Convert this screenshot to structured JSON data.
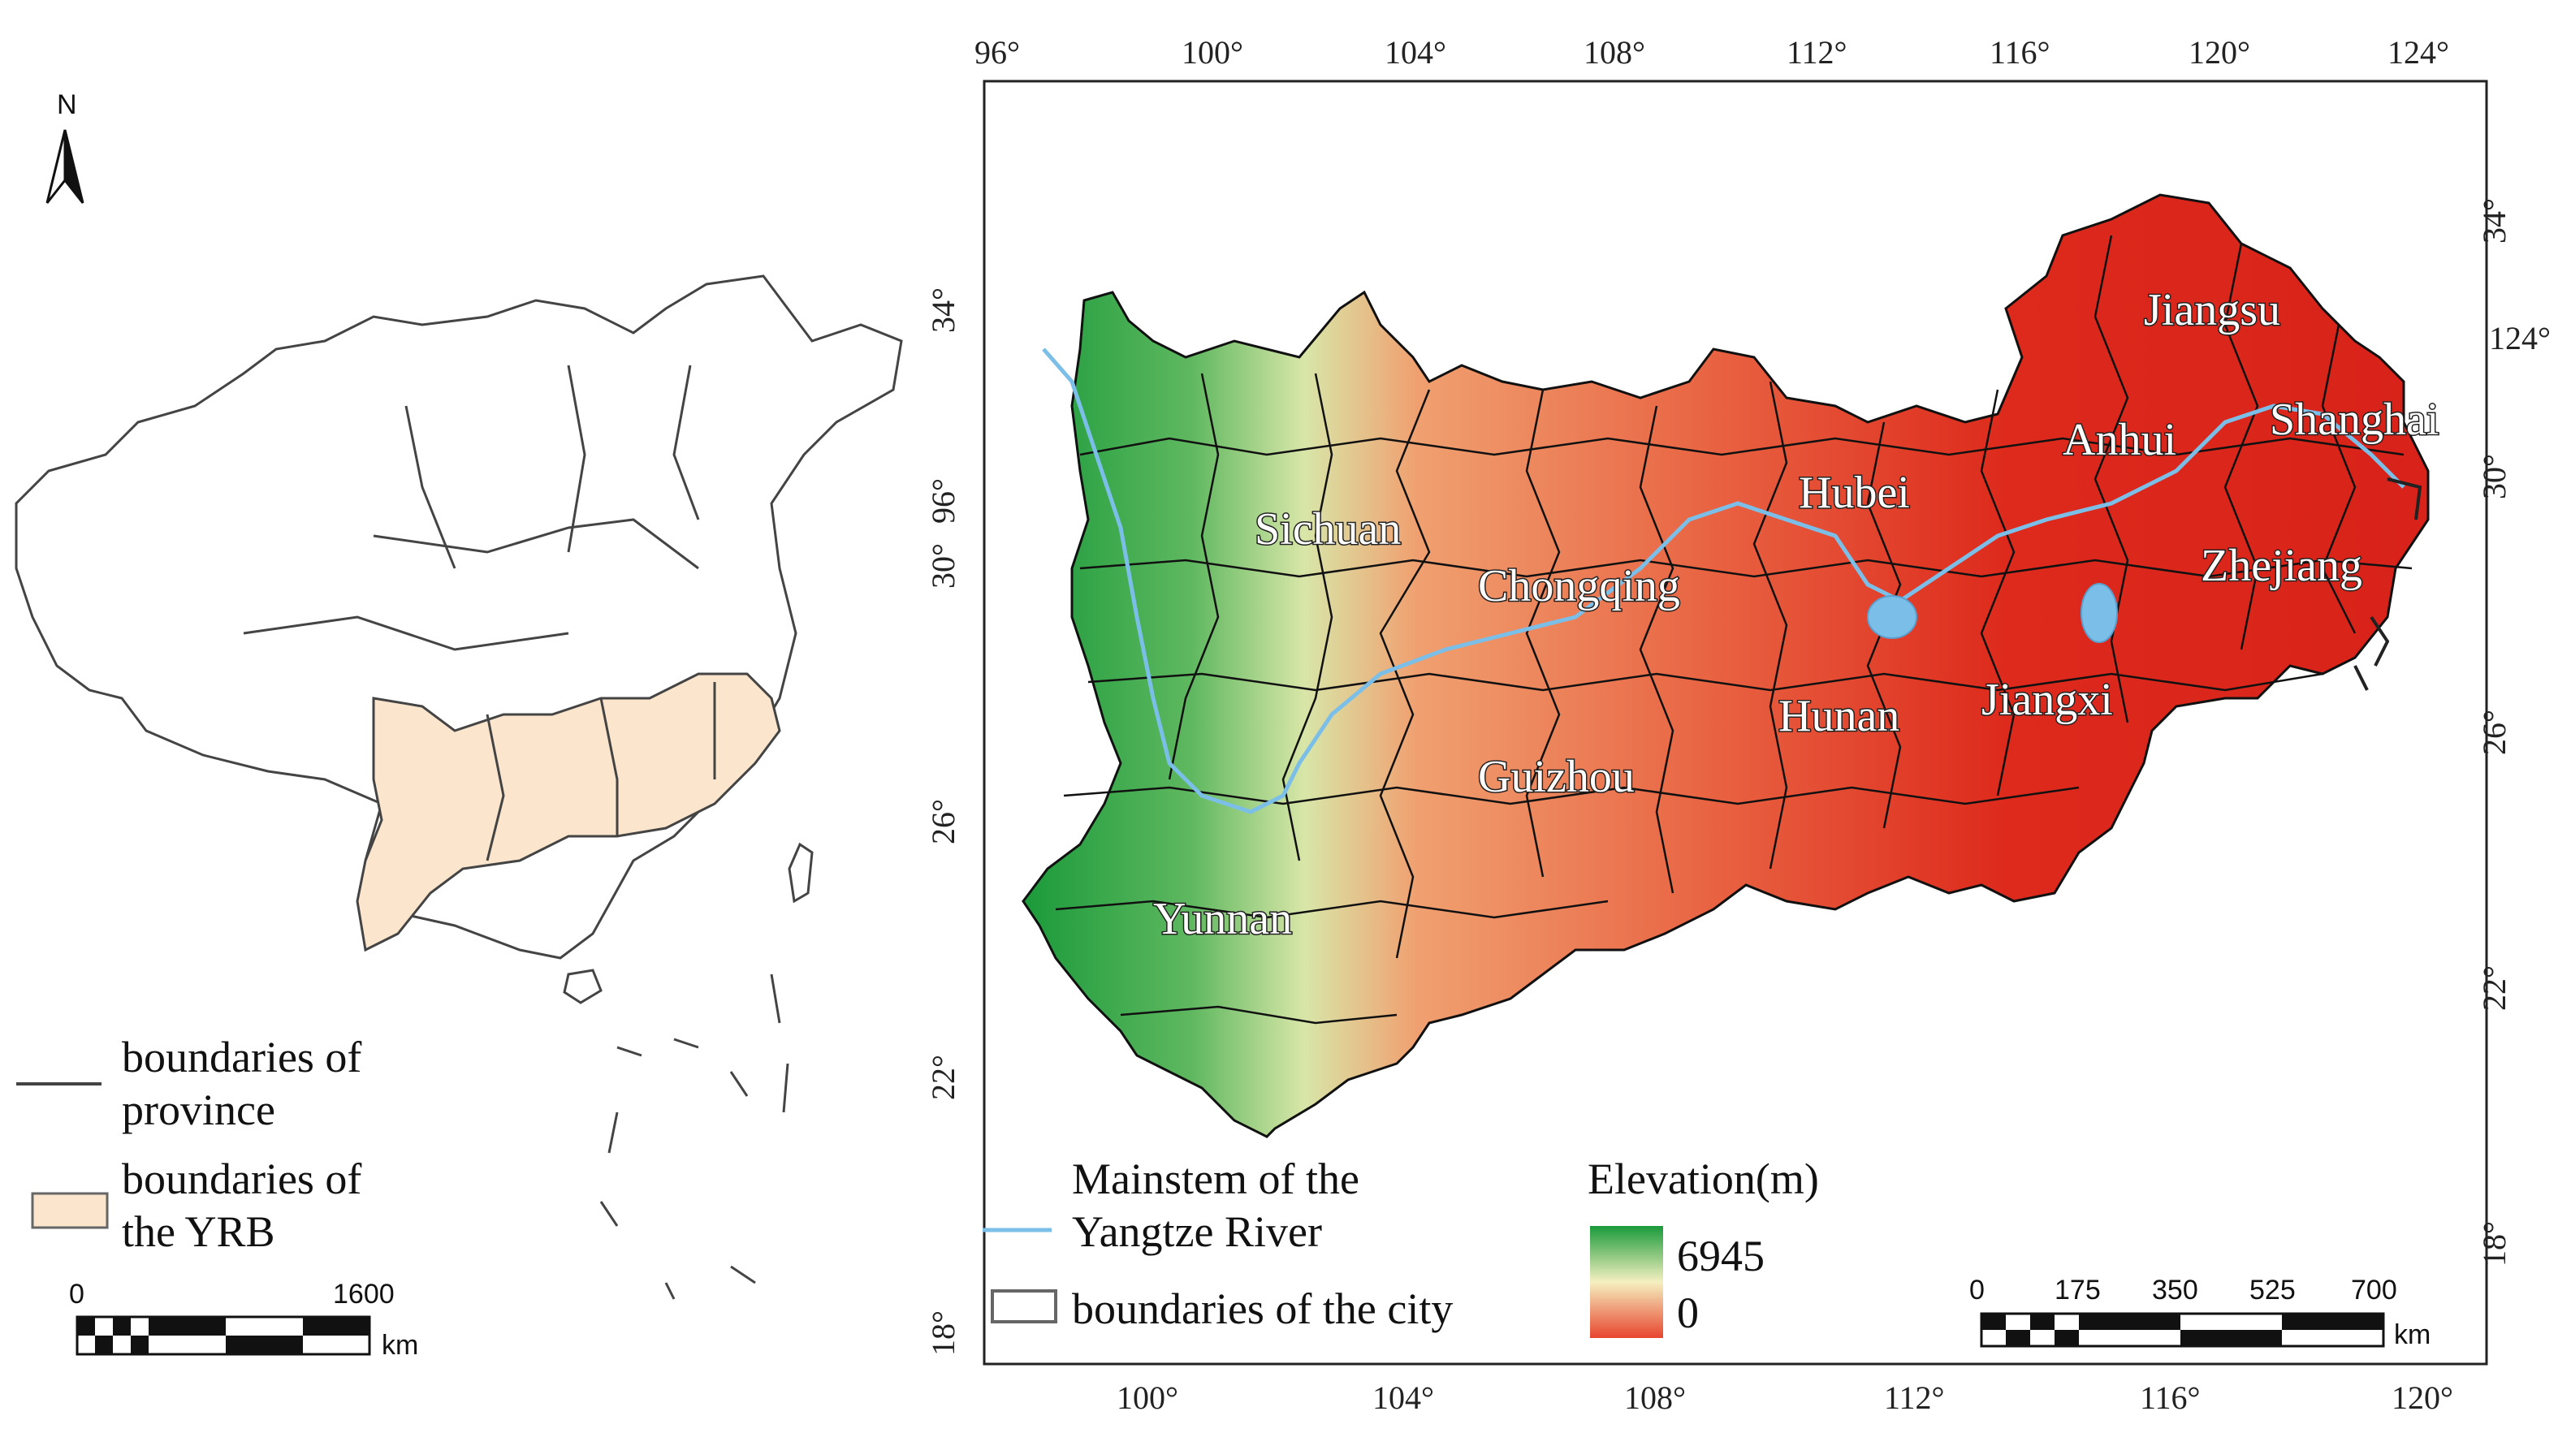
{
  "north_arrow": {
    "label": "N"
  },
  "inset_legend": {
    "province_label": "boundaries of\nprovince",
    "province_line1": "boundaries of",
    "province_line2": "province",
    "yrb_line1": "boundaries of",
    "yrb_line2": "the YRB",
    "yrb_color": "#fbe5cd"
  },
  "inset_scale": {
    "ticks": [
      "0",
      "1600"
    ],
    "unit": "km"
  },
  "main_map": {
    "top_lon_labels": [
      "96°",
      "100°",
      "104°",
      "108°",
      "112°",
      "116°",
      "120°",
      "124°"
    ],
    "bottom_lon_labels": [
      "100°",
      "104°",
      "108°",
      "112°",
      "116°",
      "120°"
    ],
    "left_lat_labels": [
      "34°",
      "30°",
      "26°",
      "22°",
      "18°"
    ],
    "right_lat_labels": [
      "34°",
      "30°",
      "26°",
      "22°",
      "18°"
    ],
    "extra_labels": {
      "right_124": "124°",
      "left_96": "96°"
    },
    "provinces": [
      "Sichuan",
      "Chongqing",
      "Hubei",
      "Anhui",
      "Jiangsu",
      "Shanghai",
      "Zhejiang",
      "Jiangxi",
      "Hunan",
      "Guizhou",
      "Yunnan"
    ]
  },
  "legend": {
    "river_line1": "Mainstem of the",
    "river_line2": "Yangtze River",
    "city_label": "boundaries of the city",
    "elevation_title": "Elevation(m)",
    "elevation_max": "6945",
    "elevation_min": "0",
    "high_color": "#1a9a3a",
    "mid_color": "#f5f0c0",
    "low_color": "#e8452e",
    "river_color": "#7bbfe8"
  },
  "scale_bar": {
    "ticks": [
      "0",
      "175",
      "350",
      "525",
      "700"
    ],
    "unit": "km"
  }
}
